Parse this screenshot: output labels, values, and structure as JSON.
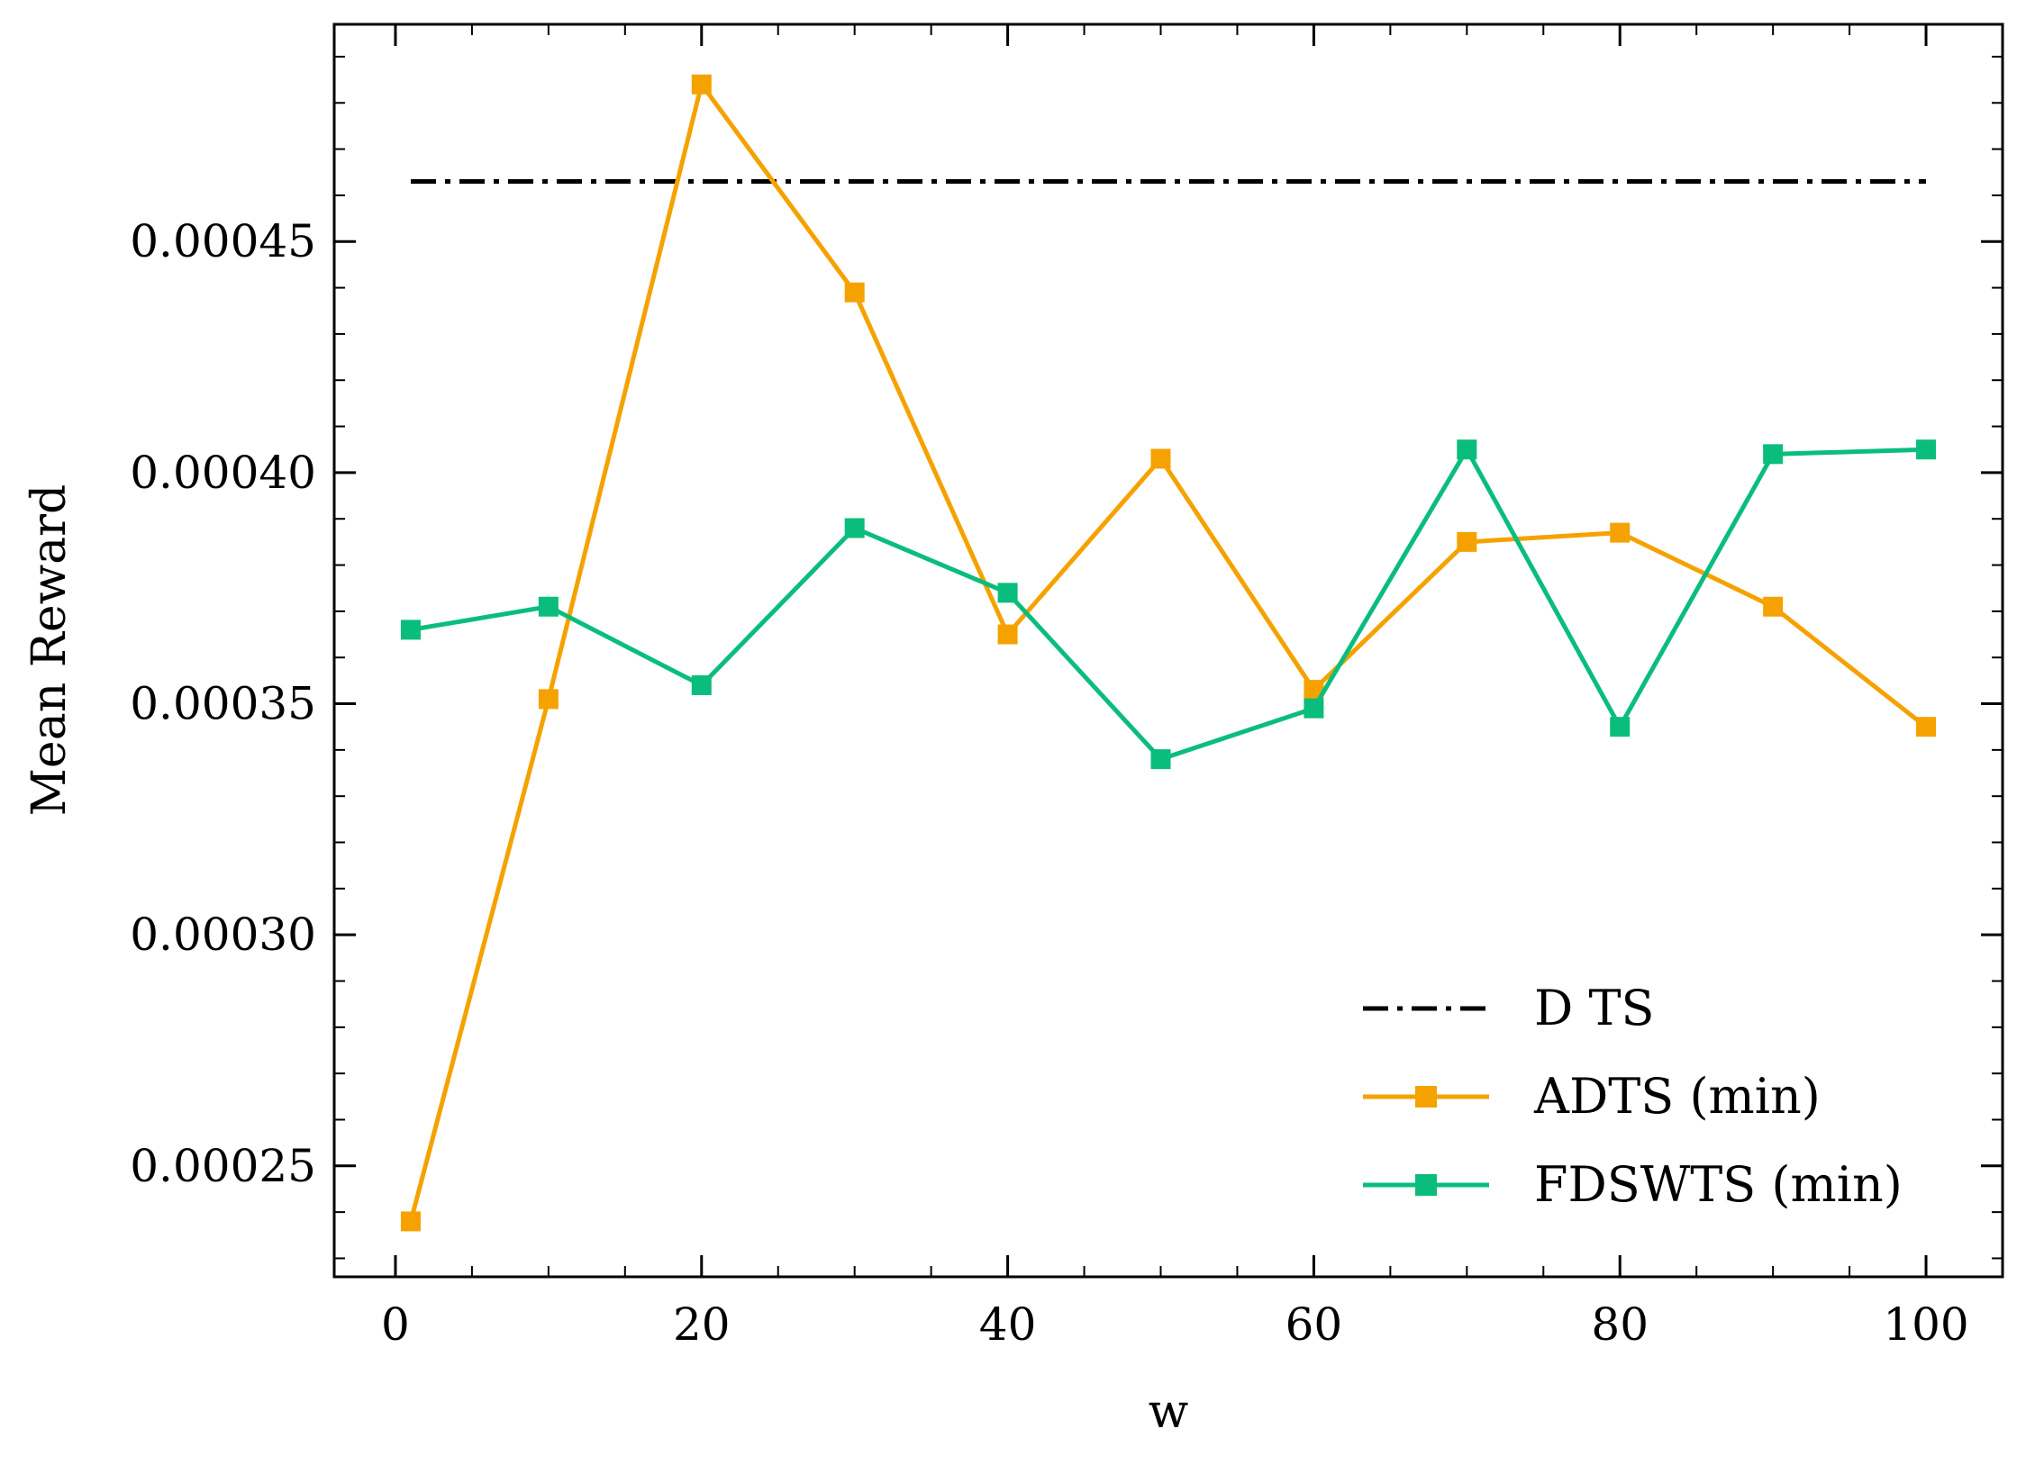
{
  "chart_data": {
    "type": "line",
    "title": "",
    "xlabel": "w",
    "ylabel": "Mean Reward",
    "xlim": [
      -4,
      105
    ],
    "ylim": [
      0.000226,
      0.000497
    ],
    "x_ticks": [
      0,
      20,
      40,
      60,
      80,
      100
    ],
    "x_tick_labels": [
      "0",
      "20",
      "40",
      "60",
      "80",
      "100"
    ],
    "x_minor_step": 5,
    "y_ticks": [
      0.00025,
      0.0003,
      0.00035,
      0.0004,
      0.00045
    ],
    "y_tick_labels": [
      "0.00025",
      "0.00030",
      "0.00035",
      "0.00040",
      "0.00045"
    ],
    "y_minor_step": 1e-05,
    "grid": false,
    "legend_position": "bottom-right",
    "x": [
      1,
      10,
      20,
      30,
      40,
      50,
      60,
      70,
      80,
      90,
      100
    ],
    "series": [
      {
        "name": "D TS",
        "style": "dashdot",
        "color": "#000000",
        "marker": "none",
        "values": [
          0.000463,
          0.000463,
          0.000463,
          0.000463,
          0.000463,
          0.000463,
          0.000463,
          0.000463,
          0.000463,
          0.000463,
          0.000463
        ]
      },
      {
        "name": "ADTS (min)",
        "style": "solid",
        "color": "#f5a200",
        "marker": "square",
        "values": [
          0.000238,
          0.000351,
          0.000484,
          0.000439,
          0.000365,
          0.000403,
          0.000353,
          0.000385,
          0.000387,
          0.000371,
          0.000345
        ]
      },
      {
        "name": "FDSWTS (min)",
        "style": "solid",
        "color": "#0bbd7d",
        "marker": "square",
        "values": [
          0.000366,
          0.000371,
          0.000354,
          0.000388,
          0.000374,
          0.000338,
          0.000349,
          0.000405,
          0.000345,
          0.000404,
          0.000405
        ]
      }
    ]
  }
}
